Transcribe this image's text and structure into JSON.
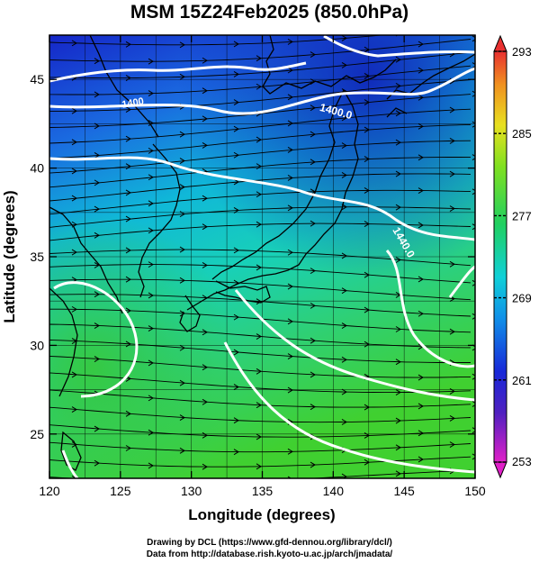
{
  "title": "MSM 15Z24Feb2025 (850.0hPa)",
  "x_axis": {
    "label": "Longitude (degrees)",
    "range": [
      120,
      150
    ],
    "ticks": [
      120,
      125,
      130,
      135,
      140,
      145,
      150
    ]
  },
  "y_axis": {
    "label": "Latitude  (degrees)",
    "range": [
      22.5,
      47.5
    ],
    "ticks": [
      25,
      30,
      35,
      40,
      45
    ]
  },
  "colorbar": {
    "range": [
      253,
      293
    ],
    "ticks": [
      253,
      261,
      269,
      277,
      285,
      293
    ]
  },
  "contours": [
    {
      "label": "1400.0"
    },
    {
      "label": "1440.0"
    },
    {
      "label": "1400"
    }
  ],
  "credits": {
    "line1": "Drawing by DCL (https://www.gfd-dennou.org/library/dcl/)",
    "line2": "Data from http://database.rish.kyoto-u.ac.jp/arch/jmadata/"
  },
  "colors": {
    "cold": "#1a2fd6",
    "mid": "#00c8d2",
    "warm": "#22c83a"
  }
}
